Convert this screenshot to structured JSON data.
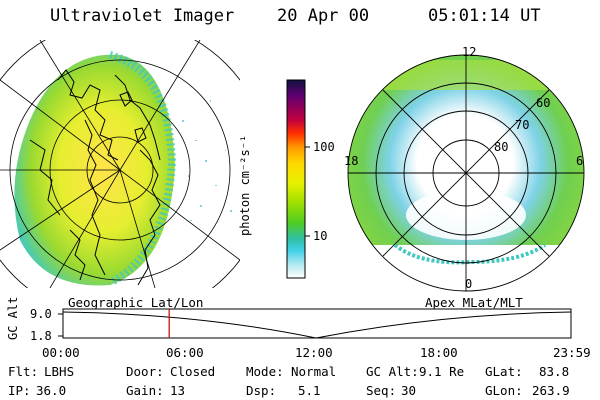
{
  "header": {
    "instrument": "Ultraviolet Imager",
    "date": "20 Apr 00",
    "time": "05:01:14 UT"
  },
  "colorbar": {
    "unit_label": "photon cm⁻²s⁻¹",
    "ticks": [
      "100",
      "10"
    ],
    "scale": "log",
    "colors": [
      "#101040",
      "#600070",
      "#c00040",
      "#ff3000",
      "#ff9900",
      "#ffd800",
      "#e8f000",
      "#a0e000",
      "#50cc20",
      "#30c0a0",
      "#40d0e8",
      "#b0e8f0",
      "#ffffff"
    ]
  },
  "map_labels": {
    "left_panel": "Geographic Lat/Lon",
    "right_panel": "Apex MLat/MLT"
  },
  "polar_plot": {
    "mlt_labels": {
      "top": "12",
      "left": "18",
      "right": "6",
      "bottom": "0"
    },
    "lat_labels": [
      "60",
      "70",
      "80"
    ]
  },
  "altitude_plot": {
    "ylabel": "GC Alt",
    "yticks": [
      "9.0",
      "1.8"
    ],
    "xticks": [
      "00:00",
      "06:00",
      "12:00",
      "18:00",
      "23:59"
    ],
    "marker_time": "05:01",
    "marker_fraction": 0.209,
    "marker_color": "#cc0000"
  },
  "info": {
    "flt_label": "Flt:",
    "flt_value": "LBHS",
    "ip_label": "IP:",
    "ip_value": "36.0",
    "door_label": "Door:",
    "door_value": "Closed",
    "gain_label": "Gain:",
    "gain_value": "13",
    "mode_label": "Mode:",
    "mode_value": "Normal",
    "dsp_label": "Dsp:",
    "dsp_value": "5.1",
    "gcalt_label": "GC Alt:",
    "gcalt_value": "9.1 Re",
    "seq_label": "Seq:",
    "seq_value": "30",
    "glat_label": "GLat:",
    "glat_value": "83.8",
    "glon_label": "GLon:",
    "glon_value": "263.9"
  }
}
